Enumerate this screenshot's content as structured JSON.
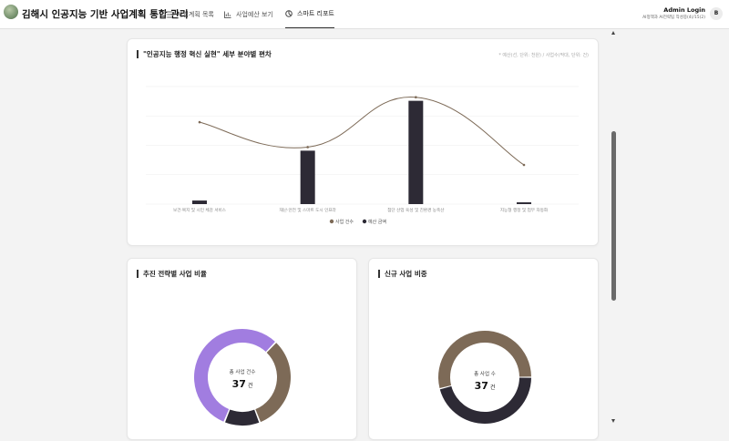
{
  "header": {
    "title": "김해시 인공지능 기반 사업계획 통합 관리",
    "nav": [
      {
        "label": "사업계획 목록",
        "icon": "list-icon"
      },
      {
        "label": "사업예산 보기",
        "icon": "bar-chart-icon"
      },
      {
        "label": "스마트 리포트",
        "icon": "pie-chart-icon",
        "active": true
      }
    ],
    "user_name": "Admin Login",
    "user_detail": "AI정책과 AI전략팀 작성중(4)/15(2)",
    "avatar": "B"
  },
  "main_chart": {
    "title": "\"인공지능 행정 혁신 실현\" 세부 분야별 편차",
    "note": "* 예산(선, 단위: 천원) / 사업수(막대, 단위: 건)",
    "legend": [
      "사업 건수",
      "예산 금액"
    ]
  },
  "strategy_card": {
    "title": "추진 전략별 사업 비율",
    "center_label": "총 사업 건수",
    "center_value": "37",
    "unit": "건"
  },
  "new_card": {
    "title": "신규 사업 비중",
    "center_label": "총 사업 수",
    "center_value": "37",
    "unit": "건"
  },
  "colors": {
    "bar": "#2d2a35",
    "line": "#7d6a57",
    "purple": "#a17de0",
    "brown": "#7d6a57",
    "dark": "#2d2a35"
  },
  "chart_data": [
    {
      "type": "bar",
      "categories": [
        "보건·복지 및 시민 체감 서비스",
        "재난·안전 및 스마트 도시 인프라",
        "첨단 산업 육성 및 친환경 농축산",
        "지능형 행정 및 업무 자동화"
      ],
      "series": [
        {
          "name": "사업 건수",
          "type": "line",
          "values": [
            2.3,
            1.6,
            3.0,
            1.1
          ]
        },
        {
          "name": "예산 금액",
          "type": "bar",
          "values": [
            0.1,
            1.5,
            2.9,
            0.05
          ]
        }
      ],
      "ylim": [
        0,
        3.3
      ],
      "grid": true,
      "legend_position": "bottom"
    },
    {
      "type": "pie",
      "categories": [
        "purple",
        "brown",
        "dark"
      ],
      "values": [
        0.56,
        0.32,
        0.12
      ]
    },
    {
      "type": "pie",
      "categories": [
        "dark",
        "brown"
      ],
      "values": [
        0.46,
        0.54
      ]
    }
  ]
}
